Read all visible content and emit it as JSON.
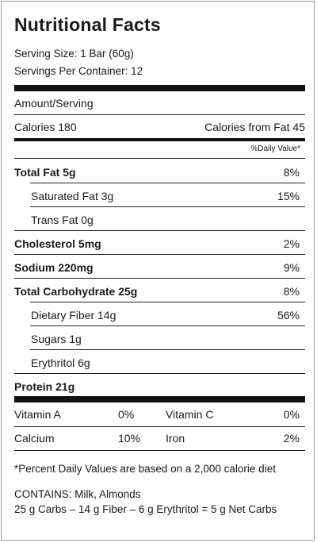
{
  "label": {
    "title": "Nutritional Facts",
    "serving_size": "Serving Size: 1 Bar (60g)",
    "servings_per_container": "Servings Per Container: 12",
    "amount_per_serving": "Amount/Serving",
    "calories": "Calories 180",
    "calories_from_fat": "Calories from Fat 45",
    "daily_value_header": "%Daily Value*",
    "nutrients": [
      {
        "name": "Total Fat 5g",
        "dv": "8%"
      },
      {
        "name": "Saturated Fat 3g",
        "dv": "15%"
      },
      {
        "name": "Trans Fat 0g",
        "dv": ""
      },
      {
        "name": "Cholesterol 5mg",
        "dv": "2%"
      },
      {
        "name": "Sodium 220mg",
        "dv": "9%"
      },
      {
        "name": "Total Carbohydrate 25g",
        "dv": "8%"
      },
      {
        "name": "Dietary Fiber 14g",
        "dv": "56%"
      },
      {
        "name": "Sugars 1g",
        "dv": ""
      },
      {
        "name": "Erythritol 6g",
        "dv": ""
      },
      {
        "name": "Protein 21g",
        "dv": ""
      }
    ],
    "vitamins": [
      {
        "name": "Vitamin A",
        "value": "0%"
      },
      {
        "name": "Vitamin C",
        "value": "0%"
      },
      {
        "name": "Calcium",
        "value": "10%"
      },
      {
        "name": "Iron",
        "value": "2%"
      }
    ],
    "footnote": "*Percent Daily Values are based on a 2,000 calorie diet",
    "contains": "CONTAINS: Milk, Almonds",
    "net_carbs": "25 g Carbs – 14 g Fiber – 6 g Erythritol = 5 g Net Carbs"
  }
}
